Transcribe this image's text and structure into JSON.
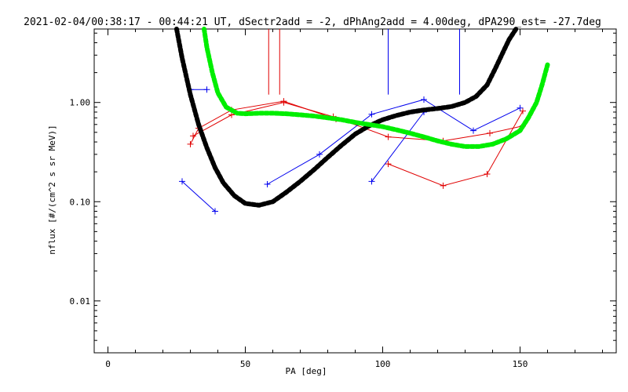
{
  "chart_data": {
    "type": "line",
    "title": "2021-02-04/00:38:17 - 00:44:21 UT, dSectr2add = -2, dPhAng2add = 4.00deg, dPA290_est= -27.7deg",
    "xlabel": "PA [deg]",
    "ylabel": "nflux [#/(cm^2 s sr MeV)]",
    "xlim": [
      -5,
      185
    ],
    "ylim": [
      0.003,
      5.5
    ],
    "yscale": "log",
    "x_ticks": [
      0,
      50,
      100,
      150
    ],
    "x_tick_labels": [
      "0",
      "50",
      "100",
      "150"
    ],
    "y_ticks": [
      0.01,
      0.1,
      1.0
    ],
    "y_tick_labels": [
      "0.01",
      "0.10",
      "1.00"
    ],
    "grid": false,
    "colors": {
      "red": "#e00000",
      "blue": "#0000ee",
      "black": "#000000",
      "green": "#00ee00"
    },
    "series": [
      {
        "color": "red",
        "kind": "marked-line",
        "x": [
          30,
          33,
          45,
          64,
          83
        ],
        "y": [
          0.38,
          0.55,
          0.84,
          1.03,
          0.68
        ]
      },
      {
        "color": "red",
        "kind": "marked-line",
        "x": [
          31,
          45,
          64,
          82,
          102,
          122,
          139,
          151
        ],
        "y": [
          0.46,
          0.75,
          1.0,
          0.72,
          0.45,
          0.41,
          0.49,
          0.58
        ]
      },
      {
        "color": "red",
        "kind": "marked-line",
        "x": [
          102,
          122,
          138,
          151
        ],
        "y": [
          0.24,
          0.145,
          0.19,
          0.82
        ]
      },
      {
        "color": "blue",
        "kind": "marked-line",
        "x": [
          27,
          39
        ],
        "y": [
          0.16,
          0.08
        ]
      },
      {
        "color": "blue",
        "kind": "marked-line",
        "x": [
          58,
          77,
          96,
          115,
          133,
          150
        ],
        "y": [
          0.15,
          0.3,
          0.76,
          1.07,
          0.52,
          0.88
        ]
      },
      {
        "color": "blue",
        "kind": "marked-line",
        "x": [
          96,
          115
        ],
        "y": [
          0.16,
          0.8
        ]
      },
      {
        "color": "blue",
        "kind": "marked-line",
        "x": [
          30,
          36
        ],
        "y": [
          1.35,
          1.35
        ]
      },
      {
        "color": "black",
        "kind": "thick-dashed",
        "x": [
          25,
          27,
          30,
          33,
          36,
          39,
          42,
          46,
          50,
          55,
          60,
          65,
          70,
          75,
          80,
          85,
          90,
          95,
          100,
          105,
          110,
          115,
          120,
          125,
          130,
          134,
          138,
          141,
          144,
          146,
          148.5
        ],
        "y": [
          5.5,
          2.8,
          1.2,
          0.6,
          0.35,
          0.22,
          0.155,
          0.115,
          0.096,
          0.092,
          0.1,
          0.125,
          0.16,
          0.21,
          0.28,
          0.37,
          0.48,
          0.58,
          0.67,
          0.74,
          0.8,
          0.84,
          0.87,
          0.91,
          1.0,
          1.15,
          1.5,
          2.2,
          3.3,
          4.3,
          5.5
        ]
      },
      {
        "color": "green",
        "kind": "thick-dashed",
        "x": [
          35,
          36,
          38,
          40,
          43,
          47,
          50,
          55,
          60,
          65,
          70,
          75,
          80,
          85,
          90,
          95,
          100,
          105,
          110,
          115,
          120,
          125,
          130,
          135,
          140,
          145,
          150,
          153,
          156,
          158,
          160
        ],
        "y": [
          5.5,
          3.6,
          2.0,
          1.25,
          0.9,
          0.78,
          0.77,
          0.78,
          0.78,
          0.77,
          0.75,
          0.73,
          0.7,
          0.67,
          0.63,
          0.6,
          0.57,
          0.53,
          0.49,
          0.45,
          0.41,
          0.38,
          0.36,
          0.36,
          0.38,
          0.43,
          0.52,
          0.7,
          1.0,
          1.5,
          2.4
        ]
      }
    ],
    "vertical_markers": [
      {
        "color": "red",
        "x": 58.5,
        "y_from": 1.2,
        "y_to": 5.5
      },
      {
        "color": "red",
        "x": 62.5,
        "y_from": 1.2,
        "y_to": 5.5
      },
      {
        "color": "blue",
        "x": 102,
        "y_from": 1.2,
        "y_to": 5.5
      },
      {
        "color": "blue",
        "x": 128,
        "y_from": 1.2,
        "y_to": 5.5
      }
    ]
  }
}
